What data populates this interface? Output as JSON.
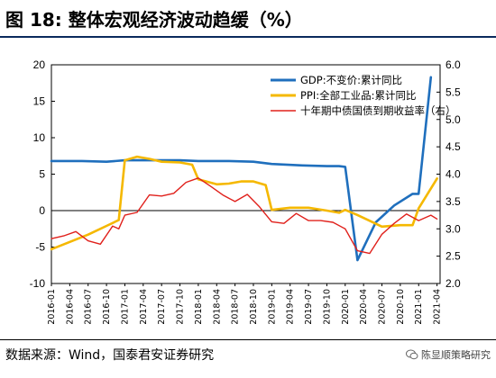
{
  "header": {
    "title": "图 18:  整体宏观经济波动趋缓（%）"
  },
  "footer": {
    "source": "数据来源：Wind，国泰君安证券研究",
    "watermark": "陈显顺策略研究"
  },
  "chart_data": {
    "type": "line",
    "title": "",
    "xlabel": "",
    "ylabel": "",
    "ylim_left": [
      -10,
      20
    ],
    "yticks_left": [
      -10,
      -5,
      0,
      5,
      10,
      15,
      20
    ],
    "ylim_right": [
      2.0,
      6.0
    ],
    "yticks_right": [
      "2.0",
      "2.5",
      "3.0",
      "3.5",
      "4.0",
      "4.5",
      "5.0",
      "5.5",
      "6.0"
    ],
    "x_tick_labels": [
      "2016-01",
      "2016-04",
      "2016-07",
      "2016-10",
      "2017-01",
      "2017-04",
      "2017-07",
      "2017-10",
      "2018-01",
      "2018-04",
      "2018-07",
      "2018-10",
      "2019-01",
      "2019-04",
      "2019-07",
      "2019-10",
      "2020-01",
      "2020-04",
      "2020-07",
      "2020-10",
      "2021-01",
      "2021-04"
    ],
    "legend_position": "top-right",
    "grid": false,
    "series": [
      {
        "name": "GDP:不变价:累计同比",
        "axis": "left",
        "color": "#1f6fbd",
        "x": [
          "2016-01",
          "2016-06",
          "2016-10",
          "2017-01",
          "2017-06",
          "2017-10",
          "2018-01",
          "2018-06",
          "2018-10",
          "2019-01",
          "2019-06",
          "2019-10",
          "2019-12",
          "2020-01",
          "2020-03",
          "2020-06",
          "2020-09",
          "2020-12",
          "2021-01",
          "2021-03"
        ],
        "values": [
          6.8,
          6.8,
          6.7,
          6.9,
          6.9,
          6.9,
          6.8,
          6.8,
          6.7,
          6.4,
          6.2,
          6.1,
          6.1,
          6.0,
          -6.8,
          -1.6,
          0.7,
          2.3,
          2.3,
          18.3
        ]
      },
      {
        "name": "PPI:全部工业品:累计同比",
        "axis": "left",
        "color": "#f5b800",
        "x": [
          "2016-01",
          "2016-04",
          "2016-07",
          "2016-10",
          "2016-12",
          "2017-01",
          "2017-03",
          "2017-05",
          "2017-07",
          "2017-10",
          "2017-12",
          "2018-01",
          "2018-04",
          "2018-06",
          "2018-08",
          "2018-10",
          "2018-12",
          "2019-01",
          "2019-04",
          "2019-07",
          "2019-10",
          "2019-12",
          "2020-01",
          "2020-03",
          "2020-05",
          "2020-07",
          "2020-10",
          "2020-12",
          "2021-01",
          "2021-04"
        ],
        "values": [
          -5.3,
          -4.3,
          -3.3,
          -2.1,
          -1.3,
          6.9,
          7.4,
          7.1,
          6.7,
          6.6,
          6.3,
          4.3,
          3.6,
          3.7,
          4.0,
          4.0,
          3.5,
          0.1,
          0.4,
          0.4,
          0.0,
          -0.3,
          0.1,
          -0.6,
          -1.4,
          -2.2,
          -2.0,
          -2.0,
          0.3,
          4.4
        ]
      },
      {
        "name": "十年期中债国债到期收益率（右）",
        "axis": "right",
        "color": "#e0201b",
        "x": [
          "2016-01",
          "2016-03",
          "2016-05",
          "2016-07",
          "2016-09",
          "2016-11",
          "2016-12",
          "2017-01",
          "2017-03",
          "2017-05",
          "2017-07",
          "2017-09",
          "2017-11",
          "2018-01",
          "2018-03",
          "2018-05",
          "2018-07",
          "2018-09",
          "2018-11",
          "2019-01",
          "2019-03",
          "2019-05",
          "2019-07",
          "2019-09",
          "2019-11",
          "2020-01",
          "2020-03",
          "2020-05",
          "2020-07",
          "2020-09",
          "2020-11",
          "2021-01",
          "2021-03",
          "2021-04"
        ],
        "values": [
          2.82,
          2.87,
          2.95,
          2.78,
          2.72,
          3.05,
          3.0,
          3.25,
          3.3,
          3.62,
          3.6,
          3.65,
          3.85,
          3.93,
          3.78,
          3.62,
          3.5,
          3.63,
          3.4,
          3.13,
          3.1,
          3.28,
          3.15,
          3.15,
          3.12,
          3.0,
          2.6,
          2.55,
          2.9,
          3.1,
          3.27,
          3.15,
          3.25,
          3.18
        ]
      }
    ]
  }
}
